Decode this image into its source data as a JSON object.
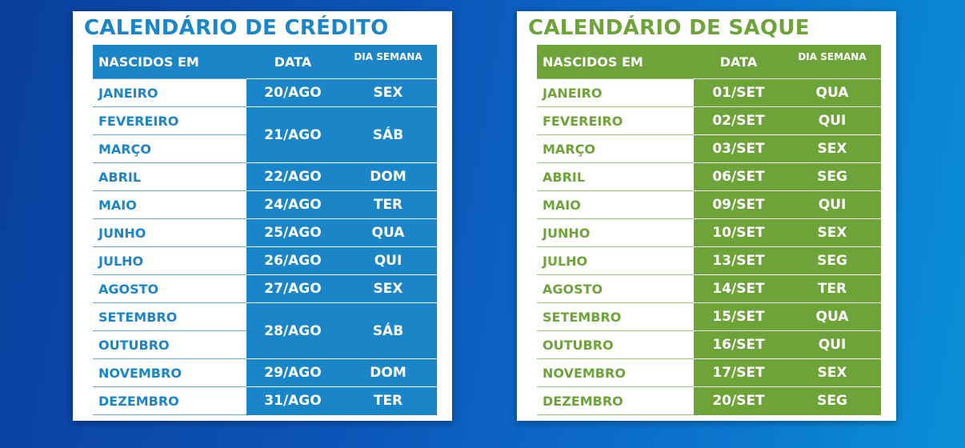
{
  "credito": {
    "title": "CALENDÁRIO DE CRÉDITO",
    "headers": {
      "month": "NASCIDOS EM",
      "date": "DATA",
      "day": "DIA SEMANA"
    },
    "rows": [
      {
        "months": [
          "JANEIRO"
        ],
        "date": "20/AGO",
        "day": "SEX"
      },
      {
        "months": [
          "FEVEREIRO",
          "MARÇO"
        ],
        "date": "21/AGO",
        "day": "SÁB"
      },
      {
        "months": [
          "ABRIL"
        ],
        "date": "22/AGO",
        "day": "DOM"
      },
      {
        "months": [
          "MAIO"
        ],
        "date": "24/AGO",
        "day": "TER"
      },
      {
        "months": [
          "JUNHO"
        ],
        "date": "25/AGO",
        "day": "QUA"
      },
      {
        "months": [
          "JULHO"
        ],
        "date": "26/AGO",
        "day": "QUI"
      },
      {
        "months": [
          "AGOSTO"
        ],
        "date": "27/AGO",
        "day": "SEX"
      },
      {
        "months": [
          "SETEMBRO",
          "OUTUBRO"
        ],
        "date": "28/AGO",
        "day": "SÁB"
      },
      {
        "months": [
          "NOVEMBRO"
        ],
        "date": "29/AGO",
        "day": "DOM"
      },
      {
        "months": [
          "DEZEMBRO"
        ],
        "date": "31/AGO",
        "day": "TER"
      }
    ]
  },
  "saque": {
    "title": "CALENDÁRIO DE SAQUE",
    "headers": {
      "month": "NASCIDOS EM",
      "date": "DATA",
      "day": "DIA SEMANA"
    },
    "rows": [
      {
        "months": [
          "JANEIRO"
        ],
        "date": "01/SET",
        "day": "QUA"
      },
      {
        "months": [
          "FEVEREIRO"
        ],
        "date": "02/SET",
        "day": "QUI"
      },
      {
        "months": [
          "MARÇO"
        ],
        "date": "03/SET",
        "day": "SEX"
      },
      {
        "months": [
          "ABRIL"
        ],
        "date": "06/SET",
        "day": "SEG"
      },
      {
        "months": [
          "MAIO"
        ],
        "date": "09/SET",
        "day": "QUI"
      },
      {
        "months": [
          "JUNHO"
        ],
        "date": "10/SET",
        "day": "SEX"
      },
      {
        "months": [
          "JULHO"
        ],
        "date": "13/SET",
        "day": "SEG"
      },
      {
        "months": [
          "AGOSTO"
        ],
        "date": "14/SET",
        "day": "TER"
      },
      {
        "months": [
          "SETEMBRO"
        ],
        "date": "15/SET",
        "day": "QUA"
      },
      {
        "months": [
          "OUTUBRO"
        ],
        "date": "16/SET",
        "day": "QUI"
      },
      {
        "months": [
          "NOVEMBRO"
        ],
        "date": "17/SET",
        "day": "SEX"
      },
      {
        "months": [
          "DEZEMBRO"
        ],
        "date": "20/SET",
        "day": "SEG"
      }
    ]
  },
  "colors": {
    "credito_accent": "#1a86c8",
    "saque_accent": "#6ea33a",
    "background": "#0c55b8"
  }
}
